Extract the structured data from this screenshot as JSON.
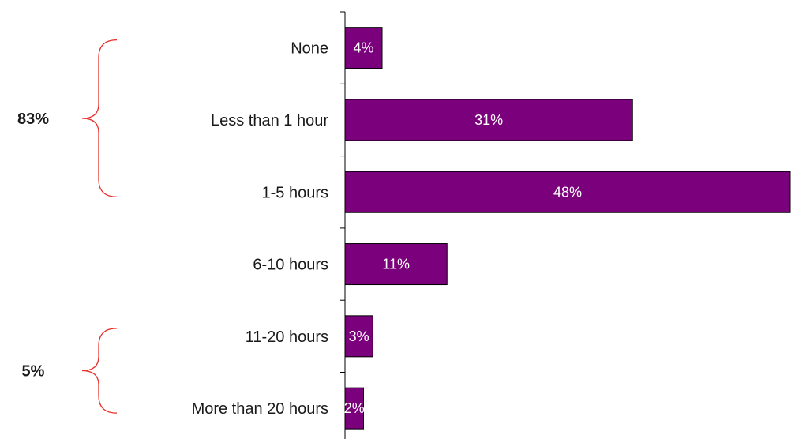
{
  "chart_data": {
    "type": "bar",
    "orientation": "horizontal",
    "categories": [
      "None",
      "Less than 1 hour",
      "1-5 hours",
      "6-10 hours",
      "11-20 hours",
      "More than 20 hours"
    ],
    "values": [
      4,
      31,
      48,
      11,
      3,
      2
    ],
    "value_labels": [
      "4%",
      "31%",
      "48%",
      "11%",
      "3%",
      "2%"
    ],
    "xlim": [
      0,
      48
    ],
    "grid": false,
    "bar_color": "#7b007b",
    "groups": [
      {
        "label": "83%",
        "from_index": 0,
        "to_index": 2
      },
      {
        "label": "5%",
        "from_index": 4,
        "to_index": 5
      }
    ],
    "bracket_color": "#e8302a"
  }
}
